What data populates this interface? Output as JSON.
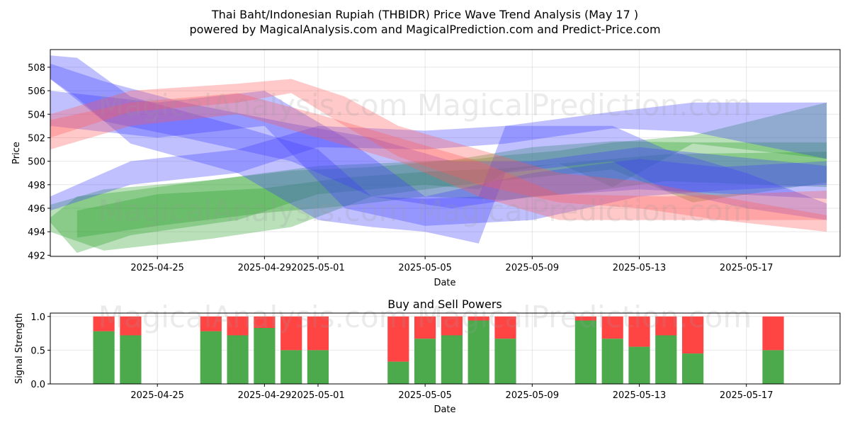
{
  "title_line1": "Thai Baht/Indonesian Rupiah (THBIDR) Price Wave Trend Analysis (May 17 )",
  "title_line2": "powered by MagicalAnalysis.com and MagicalPrediction.com and Predict-Price.com",
  "watermark_top": "MagicalAnalysis.com    MagicalPrediction.com",
  "watermark_mid": "MagicalAnalysis.com    MagicalPrediction.com",
  "watermark_bottom": "MagicalAnalysis.com    MagicalPrediction.com",
  "colors": {
    "green": "#2ca02c",
    "blue": "#3f3fff",
    "red": "#ff5a5a",
    "buy": "#4caa4c",
    "sell": "#ff4444"
  },
  "chart_data": [
    {
      "type": "area",
      "title": "",
      "xlabel": "Date",
      "ylabel": "Price",
      "xlim": [
        "2025-04-21T00:00",
        "2025-05-20T12:00"
      ],
      "ylim": [
        491.9,
        509.5
      ],
      "x_ticks": [
        "2025-04-25",
        "2025-04-29",
        "2025-05-01",
        "2025-05-05",
        "2025-05-09",
        "2025-05-13",
        "2025-05-17"
      ],
      "y_ticks": [
        492,
        494,
        496,
        498,
        500,
        502,
        504,
        506,
        508
      ],
      "grid": true,
      "series": [
        {
          "color": "green",
          "band": [
            [
              "2025-04-21",
              494.8,
              495.2
            ],
            [
              "2025-04-22",
              492.2,
              497.0
            ],
            [
              "2025-04-24",
              493.7,
              497.5
            ],
            [
              "2025-04-28",
              495.0,
              498.7
            ],
            [
              "2025-05-01",
              497.2,
              499.6
            ],
            [
              "2025-05-05",
              498.0,
              500.0
            ],
            [
              "2025-05-07",
              497.6,
              500.2
            ],
            [
              "2025-05-08",
              499.1,
              500.5
            ],
            [
              "2025-05-10",
              499.8,
              500.9
            ],
            [
              "2025-05-12",
              497.8,
              501.6
            ],
            [
              "2025-05-15",
              501.5,
              502.2
            ],
            [
              "2025-05-20",
              500.2,
              505.0
            ]
          ]
        },
        {
          "color": "green",
          "band": [
            [
              "2025-04-21",
              494.0,
              496.3
            ],
            [
              "2025-04-23",
              492.4,
              497.6
            ],
            [
              "2025-04-27",
              493.4,
              498.4
            ],
            [
              "2025-04-30",
              494.4,
              499.2
            ],
            [
              "2025-05-03",
              497.0,
              499.5
            ],
            [
              "2025-05-06",
              497.9,
              500.1
            ],
            [
              "2025-05-09",
              498.6,
              501.2
            ],
            [
              "2025-05-12",
              499.3,
              501.7
            ],
            [
              "2025-05-15",
              496.5,
              501.6
            ],
            [
              "2025-05-20",
              498.2,
              501.6
            ]
          ]
        },
        {
          "color": "green",
          "band": [
            [
              "2025-04-22",
              493.5,
              495.8
            ],
            [
              "2025-04-25",
              494.5,
              497.2
            ],
            [
              "2025-04-29",
              495.6,
              497.7
            ],
            [
              "2025-05-02",
              496.2,
              498.6
            ],
            [
              "2025-05-05",
              497.0,
              499.1
            ],
            [
              "2025-05-08",
              496.7,
              499.4
            ],
            [
              "2025-05-11",
              497.4,
              500.0
            ],
            [
              "2025-05-14",
              498.3,
              500.6
            ],
            [
              "2025-05-20",
              497.8,
              500.8
            ]
          ]
        },
        {
          "color": "blue",
          "band": [
            [
              "2025-04-21",
              495.8,
              497.0
            ],
            [
              "2025-04-24",
              498.0,
              500.0
            ],
            [
              "2025-04-28",
              499.0,
              501.0
            ],
            [
              "2025-05-01",
              501.2,
              503.0
            ],
            [
              "2025-05-05",
              501.0,
              502.6
            ],
            [
              "2025-05-08",
              501.5,
              503.0
            ],
            [
              "2025-05-12",
              502.8,
              504.2
            ],
            [
              "2025-05-15",
              502.5,
              505.0
            ],
            [
              "2025-05-20",
              500.2,
              505.0
            ]
          ]
        },
        {
          "color": "blue",
          "band": [
            [
              "2025-04-21",
              507.0,
              509.0
            ],
            [
              "2025-04-22",
              505.4,
              508.8
            ],
            [
              "2025-04-24",
              501.5,
              505.5
            ],
            [
              "2025-04-28",
              499.0,
              503.0
            ],
            [
              "2025-05-01",
              495.0,
              501.0
            ],
            [
              "2025-05-03",
              494.4,
              497.0
            ],
            [
              "2025-05-05",
              494.0,
              496.8
            ],
            [
              "2025-05-07",
              493.0,
              497.0
            ],
            [
              "2025-05-08",
              499.0,
              503.0
            ],
            [
              "2025-05-12",
              500.0,
              503.0
            ],
            [
              "2025-05-14",
              497.5,
              501.0
            ],
            [
              "2025-05-17",
              496.0,
              499.0
            ],
            [
              "2025-05-20",
              495.0,
              496.4
            ]
          ]
        },
        {
          "color": "blue",
          "band": [
            [
              "2025-04-21",
              503.0,
              506.0
            ],
            [
              "2025-04-25",
              502.0,
              505.0
            ],
            [
              "2025-04-29",
              503.0,
              506.0
            ],
            [
              "2025-05-02",
              496.0,
              502.0
            ],
            [
              "2025-05-05",
              494.5,
              497.0
            ],
            [
              "2025-05-09",
              495.0,
              499.0
            ],
            [
              "2025-05-13",
              497.0,
              500.2
            ],
            [
              "2025-05-16",
              497.5,
              499.5
            ],
            [
              "2025-05-20",
              498.0,
              500.0
            ]
          ]
        },
        {
          "color": "blue",
          "band": [
            [
              "2025-04-21",
              507.0,
              508.3
            ],
            [
              "2025-04-23",
              503.4,
              506.8
            ],
            [
              "2025-04-26",
              502.0,
              505.0
            ],
            [
              "2025-04-30",
              500.0,
              503.2
            ],
            [
              "2025-05-03",
              497.0,
              502.0
            ],
            [
              "2025-05-06",
              496.0,
              500.0
            ],
            [
              "2025-05-09",
              497.0,
              500.0
            ],
            [
              "2025-05-13",
              497.6,
              501.2
            ],
            [
              "2025-05-20",
              496.8,
              499.6
            ]
          ]
        },
        {
          "color": "red",
          "band": [
            [
              "2025-04-21",
              502.0,
              504.0
            ],
            [
              "2025-04-24",
              504.2,
              506.0
            ],
            [
              "2025-04-28",
              505.0,
              506.6
            ],
            [
              "2025-04-30",
              505.8,
              507.0
            ],
            [
              "2025-05-02",
              503.0,
              505.5
            ],
            [
              "2025-05-04",
              500.4,
              503.0
            ],
            [
              "2025-05-07",
              498.0,
              501.0
            ],
            [
              "2025-05-10",
              496.5,
              499.0
            ],
            [
              "2025-05-13",
              496.0,
              498.3
            ],
            [
              "2025-05-16",
              495.0,
              497.0
            ],
            [
              "2025-05-20",
              494.0,
              495.4
            ]
          ]
        },
        {
          "color": "red",
          "band": [
            [
              "2025-04-21",
              501.0,
              503.5
            ],
            [
              "2025-04-24",
              503.0,
              505.0
            ],
            [
              "2025-04-28",
              504.0,
              505.8
            ],
            [
              "2025-05-01",
              502.0,
              504.0
            ],
            [
              "2025-05-04",
              500.0,
              502.0
            ],
            [
              "2025-05-07",
              497.0,
              500.0
            ],
            [
              "2025-05-10",
              495.0,
              497.2
            ],
            [
              "2025-05-14",
              495.0,
              497.0
            ],
            [
              "2025-05-20",
              495.0,
              497.5
            ]
          ]
        }
      ]
    },
    {
      "type": "bar",
      "title": "Buy and Sell Powers",
      "xlabel": "Date",
      "ylabel": "Signal Strength",
      "xlim": [
        "2025-04-21T00:00",
        "2025-05-20T12:00"
      ],
      "ylim": [
        0,
        1.05
      ],
      "x_ticks": [
        "2025-04-25",
        "2025-04-29",
        "2025-05-01",
        "2025-05-05",
        "2025-05-09",
        "2025-05-13",
        "2025-05-17"
      ],
      "y_ticks": [
        "0.0",
        "0.5",
        "1.0"
      ],
      "grid": true,
      "series": [
        {
          "name": "buy",
          "color": "buy"
        },
        {
          "name": "sell",
          "color": "sell"
        }
      ],
      "x": [
        "2025-04-23",
        "2025-04-24",
        "2025-04-27",
        "2025-04-28",
        "2025-04-29",
        "2025-04-30",
        "2025-05-01",
        "2025-05-04",
        "2025-05-05",
        "2025-05-06",
        "2025-05-07",
        "2025-05-08",
        "2025-05-11",
        "2025-05-12",
        "2025-05-13",
        "2025-05-14",
        "2025-05-15",
        "2025-05-18"
      ],
      "buy": [
        0.78,
        0.72,
        0.78,
        0.72,
        0.83,
        0.5,
        0.5,
        0.33,
        0.67,
        0.72,
        0.94,
        0.67,
        0.94,
        0.67,
        0.55,
        0.72,
        0.45,
        0.5
      ]
    }
  ]
}
